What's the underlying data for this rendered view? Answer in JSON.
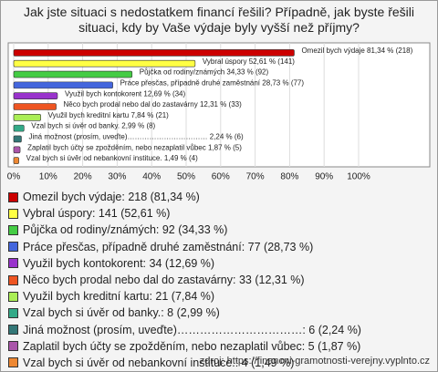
{
  "chart_data": {
    "type": "bar",
    "orientation": "horizontal",
    "title": "Jak jste situaci s nedostatkem financí řešili? Případně, jak byste řešili situaci, kdy by Vaše výdaje byly vyšší než příjmy?",
    "categories": [
      "Omezil bych výdaje",
      "Vybral úspory",
      "Půjčka od rodiny/známých",
      "Práce přesčas, případně druhé zaměstnání",
      "Využil bych kontokorent",
      "Něco bych prodal nebo dal do zastavárny",
      "Využil bych kreditní kartu",
      "Vzal bych si úvěr od banky.",
      "Jiná možnost (prosím, uveďte)……………………………",
      "Zaplatil bych účty se zpožděním, nebo nezaplatil vůbec",
      "Vzal bych si úvěr od nebankovní instituce."
    ],
    "values": [
      81.34,
      52.61,
      34.33,
      28.73,
      12.69,
      12.31,
      7.84,
      2.99,
      2.24,
      1.87,
      1.49
    ],
    "value_labels": [
      "Omezil bych výdaje 81,34 % (218)",
      "Vybral úspory 52,61 % (141)",
      "Půjčka od rodiny/známých 34,33 % (92)",
      "Práce přesčas, případně druhé zaměstnání 28,73 % (77)",
      "Využil bych kontokorent 12,69 % (34)",
      "Něco bych prodal nebo dal do zastavárny 12,31 % (33)",
      "Využil bych kreditní kartu 7,84 % (21)",
      "Vzal bych si úvěr od banky. 2,99 % (8)",
      "Jiná možnost (prosím, uveďte)…………………………… 2,24 % (6)",
      "Zaplatil bych účty se zpožděním, nebo nezaplatil vůbec 1,87 % (5)",
      "Vzal bych si úvěr od nebankovní instituce. 1,49 % (4)"
    ],
    "legend_labels": [
      "Omezil bych výdaje: 218 (81,34 %)",
      "Vybral úspory: 141 (52,61 %)",
      "Půjčka od rodiny/známých: 92 (34,33 %)",
      "Práce přesčas, případně druhé zaměstnání: 77 (28,73 %)",
      "Využil bych kontokorent: 34 (12,69 %)",
      "Něco bych prodal nebo dal do zastavárny: 33 (12,31 %)",
      "Využil bych kreditní kartu: 21 (7,84 %)",
      "Vzal bych si úvěr od banky.: 8 (2,99 %)",
      "Jiná možnost (prosím, uveďte)……………………………: 6 (2,24 %)",
      "Zaplatil bych účty se zpožděním, nebo nezaplatil vůbec: 5 (1,87 %)",
      "Vzal bych si úvěr od nebankovní instituce.: 4 (1,49 %)"
    ],
    "colors": [
      "#cc0000",
      "#ffff44",
      "#44cc44",
      "#4466dd",
      "#9933cc",
      "#ee5522",
      "#aaee55",
      "#33aa88",
      "#337777",
      "#aa55aa",
      "#ee8833"
    ],
    "xlim": [
      0,
      100
    ],
    "xticks": [
      {
        "value": 0,
        "label": "0%"
      },
      {
        "value": 10,
        "label": "10%"
      },
      {
        "value": 20,
        "label": "20%"
      },
      {
        "value": 30,
        "label": "30%"
      },
      {
        "value": 40,
        "label": "40%"
      },
      {
        "value": 50,
        "label": "50%"
      },
      {
        "value": 60,
        "label": "60%"
      },
      {
        "value": 70,
        "label": "70%"
      },
      {
        "value": 80,
        "label": "80%"
      },
      {
        "value": 90,
        "label": "90%"
      },
      {
        "value": 100,
        "label": "100%"
      }
    ],
    "grid": true,
    "source": "zdroj: https://financni-gramotnosti-verejny.vyplnto.cz"
  }
}
